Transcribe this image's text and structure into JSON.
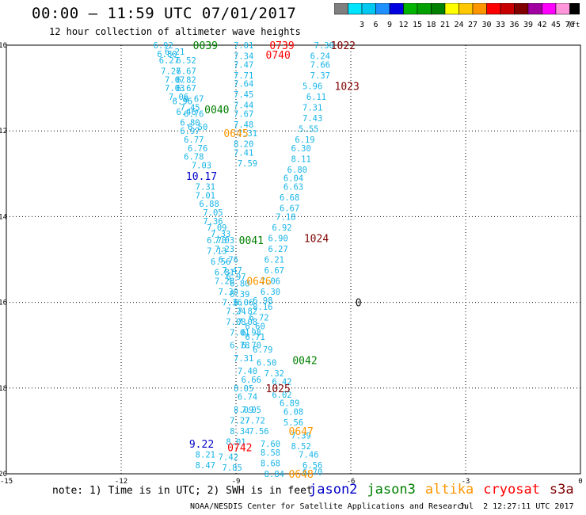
{
  "header": {
    "title": "00:00 – 11:59 UTC 07/01/2017",
    "subtitle": "12 hour collection of altimeter wave heights"
  },
  "color_scale": {
    "unit": "(ft)",
    "bins": [
      {
        "label": "",
        "color": "#7f7f7f"
      },
      {
        "label": "3",
        "color": "#00e5ff"
      },
      {
        "label": "6",
        "color": "#00c8f0"
      },
      {
        "label": "9",
        "color": "#1e90ff"
      },
      {
        "label": "12",
        "color": "#0000e0"
      },
      {
        "label": "15",
        "color": "#00b400"
      },
      {
        "label": "18",
        "color": "#00a000"
      },
      {
        "label": "21",
        "color": "#008000"
      },
      {
        "label": "24",
        "color": "#ffff00"
      },
      {
        "label": "27",
        "color": "#ffc800"
      },
      {
        "label": "30",
        "color": "#ff9600"
      },
      {
        "label": "33",
        "color": "#ff0000"
      },
      {
        "label": "36",
        "color": "#c80000"
      },
      {
        "label": "39",
        "color": "#800000"
      },
      {
        "label": "42",
        "color": "#a000a0"
      },
      {
        "label": "45",
        "color": "#ff00ff"
      },
      {
        "label": "70",
        "color": "#ff96dc"
      },
      {
        "label": "",
        "color": "#000000"
      }
    ]
  },
  "chart_data": {
    "type": "scatter",
    "xlim": [
      -15,
      0
    ],
    "ylim": [
      -20,
      -10
    ],
    "x_ticks": [
      -15,
      -12,
      -9,
      -6,
      -3,
      0
    ],
    "y_ticks": [
      -10,
      -12,
      -14,
      -16,
      -18,
      -20
    ],
    "grid": true,
    "colors": {
      "swh": "#17b4e8",
      "jason2": "#0000c8",
      "jason3": "#008000",
      "altika": "#ff9600",
      "cryosat": "#ff0000",
      "s3a": "#800000"
    },
    "track_labels": [
      {
        "text": "0039",
        "x": -9.8,
        "y": -10.0,
        "sat": "jason3"
      },
      {
        "text": "0040",
        "x": -9.5,
        "y": -11.5,
        "sat": "jason3"
      },
      {
        "text": "0041",
        "x": -8.6,
        "y": -14.55,
        "sat": "jason3"
      },
      {
        "text": "0042",
        "x": -7.2,
        "y": -17.35,
        "sat": "jason3"
      },
      {
        "text": "0739",
        "x": -7.8,
        "y": -10.0,
        "sat": "cryosat"
      },
      {
        "text": "0740",
        "x": -7.9,
        "y": -10.22,
        "sat": "cryosat"
      },
      {
        "text": "0742",
        "x": -8.9,
        "y": -19.38,
        "sat": "cryosat"
      },
      {
        "text": "0645",
        "x": -9.0,
        "y": -12.05,
        "sat": "altika"
      },
      {
        "text": "0646",
        "x": -8.4,
        "y": -15.5,
        "sat": "altika"
      },
      {
        "text": "0647",
        "x": -7.3,
        "y": -19.0,
        "sat": "altika"
      },
      {
        "text": "0648",
        "x": -7.3,
        "y": -20.0,
        "sat": "altika"
      },
      {
        "text": "1022",
        "x": -6.2,
        "y": -10.0,
        "sat": "s3a"
      },
      {
        "text": "1023",
        "x": -6.1,
        "y": -10.95,
        "sat": "s3a"
      },
      {
        "text": "1024",
        "x": -6.9,
        "y": -14.5,
        "sat": "s3a"
      },
      {
        "text": "1025",
        "x": -7.9,
        "y": -18.0,
        "sat": "s3a"
      },
      {
        "text": "10.17",
        "x": -9.9,
        "y": -13.05,
        "sat": "jason2"
      },
      {
        "text": "9.22",
        "x": -9.9,
        "y": -19.3,
        "sat": "jason2"
      },
      {
        "text": "0",
        "x": -5.8,
        "y": -16.0,
        "sat": "none"
      }
    ],
    "points": [
      {
        "x": -10.9,
        "y": -10.0,
        "v": "6.92"
      },
      {
        "x": -10.6,
        "y": -10.15,
        "v": "6.21"
      },
      {
        "x": -10.8,
        "y": -10.2,
        "v": "6.80"
      },
      {
        "x": -10.75,
        "y": -10.35,
        "v": "6.27"
      },
      {
        "x": -10.3,
        "y": -10.35,
        "v": "6.52"
      },
      {
        "x": -10.7,
        "y": -10.6,
        "v": "7.27"
      },
      {
        "x": -10.3,
        "y": -10.6,
        "v": "6.67"
      },
      {
        "x": -10.6,
        "y": -10.8,
        "v": "7.07"
      },
      {
        "x": -10.3,
        "y": -10.8,
        "v": "6.82"
      },
      {
        "x": -10.6,
        "y": -11.0,
        "v": "7.03"
      },
      {
        "x": -10.3,
        "y": -11.0,
        "v": "6.67"
      },
      {
        "x": -10.5,
        "y": -11.2,
        "v": "7.06"
      },
      {
        "x": -10.1,
        "y": -11.25,
        "v": "6.67"
      },
      {
        "x": -10.4,
        "y": -11.3,
        "v": "6.96"
      },
      {
        "x": -10.2,
        "y": -11.45,
        "v": "7.45"
      },
      {
        "x": -10.3,
        "y": -11.55,
        "v": "6.46"
      },
      {
        "x": -10.1,
        "y": -11.6,
        "v": "6.76"
      },
      {
        "x": -10.2,
        "y": -11.8,
        "v": "6.80"
      },
      {
        "x": -10.0,
        "y": -11.9,
        "v": "6.50"
      },
      {
        "x": -10.2,
        "y": -12.0,
        "v": "6.97"
      },
      {
        "x": -10.1,
        "y": -12.2,
        "v": "6.77"
      },
      {
        "x": -10.0,
        "y": -12.4,
        "v": "6.76"
      },
      {
        "x": -10.1,
        "y": -12.6,
        "v": "6.78"
      },
      {
        "x": -9.9,
        "y": -12.8,
        "v": "7.03"
      },
      {
        "x": -9.8,
        "y": -13.3,
        "v": "7.31"
      },
      {
        "x": -9.8,
        "y": -13.5,
        "v": "7.01"
      },
      {
        "x": -9.7,
        "y": -13.7,
        "v": "6.88"
      },
      {
        "x": -9.6,
        "y": -13.9,
        "v": "7.05"
      },
      {
        "x": -9.6,
        "y": -14.1,
        "v": "7.36"
      },
      {
        "x": -9.5,
        "y": -14.25,
        "v": "7.09"
      },
      {
        "x": -9.4,
        "y": -14.4,
        "v": "7.33"
      },
      {
        "x": -9.5,
        "y": -14.55,
        "v": "6.70"
      },
      {
        "x": -9.3,
        "y": -14.55,
        "v": "7.03"
      },
      {
        "x": -9.5,
        "y": -14.8,
        "v": "7.13"
      },
      {
        "x": -9.3,
        "y": -14.75,
        "v": "7.23"
      },
      {
        "x": -9.2,
        "y": -15.0,
        "v": "6.76"
      },
      {
        "x": -9.4,
        "y": -15.05,
        "v": "6.56"
      },
      {
        "x": -9.1,
        "y": -15.25,
        "v": "7.47"
      },
      {
        "x": -9.3,
        "y": -15.3,
        "v": "6.81"
      },
      {
        "x": -9.0,
        "y": -15.4,
        "v": "6.97"
      },
      {
        "x": -9.3,
        "y": -15.5,
        "v": "7.26"
      },
      {
        "x": -8.9,
        "y": -15.55,
        "v": "6.80"
      },
      {
        "x": -9.2,
        "y": -15.75,
        "v": "7.30"
      },
      {
        "x": -8.9,
        "y": -15.8,
        "v": "6.39"
      },
      {
        "x": -9.1,
        "y": -16.0,
        "v": "7.36"
      },
      {
        "x": -8.8,
        "y": -16.0,
        "v": "6.06"
      },
      {
        "x": -9.0,
        "y": -16.2,
        "v": "7.24"
      },
      {
        "x": -8.7,
        "y": -16.2,
        "v": "7.82"
      },
      {
        "x": -9.0,
        "y": -16.45,
        "v": "7.08"
      },
      {
        "x": -8.7,
        "y": -16.45,
        "v": "7.08"
      },
      {
        "x": -8.9,
        "y": -16.7,
        "v": "7.01"
      },
      {
        "x": -8.6,
        "y": -16.7,
        "v": "6.98"
      },
      {
        "x": -8.9,
        "y": -17.0,
        "v": "6.78"
      },
      {
        "x": -8.6,
        "y": -17.0,
        "v": "6.70"
      },
      {
        "x": -8.8,
        "y": -17.3,
        "v": "7.31"
      },
      {
        "x": -8.7,
        "y": -17.6,
        "v": "7.40"
      },
      {
        "x": -8.6,
        "y": -17.8,
        "v": "6.66"
      },
      {
        "x": -8.8,
        "y": -18.0,
        "v": "8.05"
      },
      {
        "x": -8.7,
        "y": -18.2,
        "v": "6.74"
      },
      {
        "x": -8.8,
        "y": -18.5,
        "v": "8.09"
      },
      {
        "x": -8.6,
        "y": -18.5,
        "v": "7.05"
      },
      {
        "x": -8.9,
        "y": -18.75,
        "v": "7.27"
      },
      {
        "x": -8.5,
        "y": -18.75,
        "v": "7.72"
      },
      {
        "x": -8.9,
        "y": -19.0,
        "v": "8.34"
      },
      {
        "x": -8.4,
        "y": -19.0,
        "v": "7.56"
      },
      {
        "x": -9.0,
        "y": -19.25,
        "v": "8.01"
      },
      {
        "x": -8.1,
        "y": -19.3,
        "v": "7.60"
      },
      {
        "x": -9.8,
        "y": -19.55,
        "v": "8.21"
      },
      {
        "x": -9.2,
        "y": -19.6,
        "v": "7.42"
      },
      {
        "x": -8.1,
        "y": -19.5,
        "v": "8.58"
      },
      {
        "x": -9.8,
        "y": -19.8,
        "v": "8.47"
      },
      {
        "x": -9.1,
        "y": -19.85,
        "v": "7.85"
      },
      {
        "x": -8.1,
        "y": -19.75,
        "v": "8.68"
      },
      {
        "x": -8.0,
        "y": -20.0,
        "v": "8.84"
      },
      {
        "x": -8.8,
        "y": -10.0,
        "v": "7.01"
      },
      {
        "x": -8.8,
        "y": -10.25,
        "v": "7.34"
      },
      {
        "x": -8.8,
        "y": -10.45,
        "v": "7.47"
      },
      {
        "x": -8.8,
        "y": -10.7,
        "v": "7.71"
      },
      {
        "x": -8.8,
        "y": -10.9,
        "v": "7.64"
      },
      {
        "x": -8.8,
        "y": -11.15,
        "v": "7.45"
      },
      {
        "x": -8.8,
        "y": -11.4,
        "v": "7.44"
      },
      {
        "x": -8.8,
        "y": -11.6,
        "v": "7.67"
      },
      {
        "x": -8.8,
        "y": -11.85,
        "v": "7.48"
      },
      {
        "x": -8.7,
        "y": -12.05,
        "v": "7.31"
      },
      {
        "x": -8.8,
        "y": -12.3,
        "v": "8.20"
      },
      {
        "x": -8.8,
        "y": -12.5,
        "v": "7.41"
      },
      {
        "x": -8.7,
        "y": -12.75,
        "v": "7.59"
      },
      {
        "x": -6.7,
        "y": -10.0,
        "v": "7.30"
      },
      {
        "x": -6.8,
        "y": -10.25,
        "v": "6.24"
      },
      {
        "x": -6.8,
        "y": -10.45,
        "v": "7.66"
      },
      {
        "x": -6.8,
        "y": -10.7,
        "v": "7.37"
      },
      {
        "x": -7.0,
        "y": -10.95,
        "v": "5.96"
      },
      {
        "x": -6.9,
        "y": -11.2,
        "v": "6.11"
      },
      {
        "x": -7.0,
        "y": -11.45,
        "v": "7.31"
      },
      {
        "x": -7.0,
        "y": -11.7,
        "v": "7.43"
      },
      {
        "x": -7.1,
        "y": -11.95,
        "v": "5.55"
      },
      {
        "x": -7.2,
        "y": -12.2,
        "v": "6.19"
      },
      {
        "x": -7.3,
        "y": -12.4,
        "v": "6.30"
      },
      {
        "x": -7.3,
        "y": -12.65,
        "v": "8.11"
      },
      {
        "x": -7.4,
        "y": -12.9,
        "v": "6.80"
      },
      {
        "x": -7.5,
        "y": -13.1,
        "v": "6.04"
      },
      {
        "x": -7.5,
        "y": -13.3,
        "v": "6.63"
      },
      {
        "x": -7.6,
        "y": -13.55,
        "v": "6.68"
      },
      {
        "x": -7.6,
        "y": -13.8,
        "v": "6.67"
      },
      {
        "x": -7.7,
        "y": -14.0,
        "v": "7.18"
      },
      {
        "x": -7.8,
        "y": -14.25,
        "v": "6.92"
      },
      {
        "x": -7.9,
        "y": -14.5,
        "v": "6.90"
      },
      {
        "x": -7.9,
        "y": -14.75,
        "v": "6.27"
      },
      {
        "x": -8.0,
        "y": -15.0,
        "v": "6.21"
      },
      {
        "x": -8.0,
        "y": -15.25,
        "v": "6.67"
      },
      {
        "x": -8.1,
        "y": -15.5,
        "v": "7.06"
      },
      {
        "x": -8.1,
        "y": -15.75,
        "v": "6.30"
      },
      {
        "x": -8.3,
        "y": -15.95,
        "v": "6.98"
      },
      {
        "x": -8.3,
        "y": -16.1,
        "v": "8.16"
      },
      {
        "x": -8.4,
        "y": -16.35,
        "v": "6.72"
      },
      {
        "x": -8.5,
        "y": -16.55,
        "v": "6.60"
      },
      {
        "x": -8.5,
        "y": -16.8,
        "v": "6.71"
      },
      {
        "x": -8.3,
        "y": -17.1,
        "v": "6.79"
      },
      {
        "x": -8.2,
        "y": -17.4,
        "v": "6.50"
      },
      {
        "x": -8.0,
        "y": -17.65,
        "v": "7.32"
      },
      {
        "x": -7.8,
        "y": -17.85,
        "v": "6.42"
      },
      {
        "x": -7.8,
        "y": -18.15,
        "v": "6.02"
      },
      {
        "x": -7.6,
        "y": -18.35,
        "v": "6.89"
      },
      {
        "x": -7.5,
        "y": -18.55,
        "v": "6.08"
      },
      {
        "x": -7.5,
        "y": -18.8,
        "v": "5.56"
      },
      {
        "x": -7.3,
        "y": -19.1,
        "v": "7.39"
      },
      {
        "x": -7.3,
        "y": -19.35,
        "v": "8.52"
      },
      {
        "x": -7.1,
        "y": -19.55,
        "v": "7.46"
      },
      {
        "x": -7.0,
        "y": -19.8,
        "v": "6.56"
      },
      {
        "x": -7.0,
        "y": -19.95,
        "v": "6.70"
      }
    ]
  },
  "footer": {
    "note": "note: 1) Time is in UTC; 2) SWH is in feet",
    "legend": [
      {
        "name": "jason2",
        "color": "#0000c8"
      },
      {
        "name": "jason3",
        "color": "#008000"
      },
      {
        "name": "altika",
        "color": "#ff9600"
      },
      {
        "name": "cryosat",
        "color": "#ff0000"
      },
      {
        "name": "s3a",
        "color": "#800000"
      }
    ],
    "credit": "NOAA/NESDIS Center for Satellite Applications and Research",
    "timestamp": "Jul  2 12:27:11 UTC 2017"
  }
}
